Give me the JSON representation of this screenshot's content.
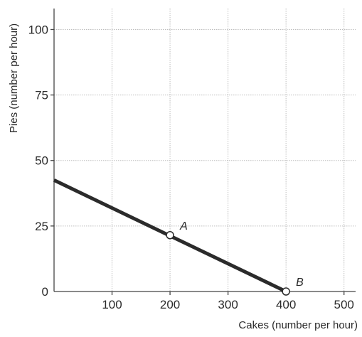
{
  "chart_data": {
    "type": "line",
    "xlabel": "Cakes (number per hour)",
    "ylabel": "Pies (number per hour)",
    "xlim": [
      0,
      520
    ],
    "ylim": [
      0,
      108
    ],
    "x_ticks": [
      100,
      200,
      300,
      400,
      500
    ],
    "x_tick_labels": [
      "100",
      "200",
      "300",
      "400",
      "500"
    ],
    "y_ticks": [
      0,
      25,
      50,
      75,
      100
    ],
    "y_tick_labels": [
      "0",
      "25",
      "50",
      "75",
      "100"
    ],
    "grid": true,
    "series": [
      {
        "x": [
          0,
          400
        ],
        "y": [
          42.5,
          0
        ],
        "color": "#2b2b2b"
      }
    ],
    "points": [
      {
        "label": "A",
        "x": 200,
        "y": 21.5
      },
      {
        "label": "B",
        "x": 400,
        "y": 0
      }
    ]
  }
}
